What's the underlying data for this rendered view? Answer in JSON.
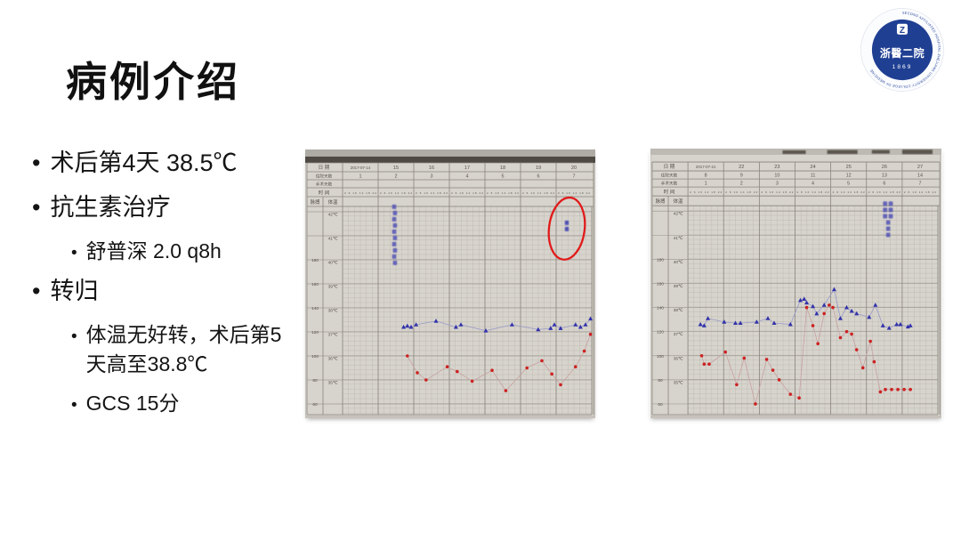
{
  "title": "病例介绍",
  "bullets": [
    {
      "level": 1,
      "text": "术后第4天 38.5℃"
    },
    {
      "level": 1,
      "text": "抗生素治疗"
    },
    {
      "level": 2,
      "text": "舒普深 2.0 q8h"
    },
    {
      "level": 1,
      "text": "转归"
    },
    {
      "level": 2,
      "text": "体温无好转，术后第5天高至38.8℃"
    },
    {
      "level": 2,
      "text": "GCS 15分"
    }
  ],
  "logo": {
    "ring_text": "SECOND AFFILIATED HOSPITAL ZHEJIANG UNIVERSITY COLLEGE OF MEDICINE",
    "monogram": "Z",
    "name_cn": "浙醫二院",
    "year": "1869",
    "blue": "#1f3f93"
  },
  "chart_data": [
    {
      "type": "line",
      "description": "住院体温单照片（入院第1周），蓝色三角=体温℃，红色圆点=脉搏次/分",
      "header_rows": {
        "date_label": "日 期",
        "dates": [
          "2017-07-14",
          "15",
          "16",
          "17",
          "18",
          "19",
          "20"
        ],
        "hospital_day_label": "住院天数",
        "hospital_days": [
          "1",
          "2",
          "3",
          "4",
          "5",
          "6",
          "7"
        ],
        "surgery_day_label": "手术天数",
        "surgery_days": [
          "",
          "",
          "",
          "",
          "",
          "",
          ""
        ],
        "time_label": "时 间",
        "time_ticks": "2 6 10 14 18 22"
      },
      "axes": {
        "pulse_label": "脉搏",
        "temp_label": "体温",
        "pulse_ticks": [
          "180",
          "160",
          "140",
          "120",
          "100",
          "80",
          "60",
          "40"
        ],
        "temp_ticks": [
          "42℃",
          "41℃",
          "40℃",
          "39℃",
          "38℃",
          "37℃",
          "36℃",
          "35℃"
        ],
        "temp_range": [
          35,
          42
        ],
        "pulse_range": [
          40,
          180
        ],
        "x_range_note": "x = fraction of 7-day grid, 6 four-hour slots per day"
      },
      "series": [
        {
          "name": "体温(℃)",
          "marker": "triangle",
          "color": "#3232aa",
          "points": [
            [
              0.245,
              37.2
            ],
            [
              0.26,
              37.25
            ],
            [
              0.275,
              37.2
            ],
            [
              0.295,
              37.3
            ],
            [
              0.375,
              37.45
            ],
            [
              0.455,
              37.2
            ],
            [
              0.475,
              37.3
            ],
            [
              0.575,
              37.05
            ],
            [
              0.68,
              37.3
            ],
            [
              0.785,
              37.1
            ],
            [
              0.835,
              37.15
            ],
            [
              0.85,
              37.3
            ],
            [
              0.875,
              37.15
            ],
            [
              0.935,
              37.3
            ],
            [
              0.955,
              37.2
            ],
            [
              0.975,
              37.3
            ],
            [
              0.995,
              37.55
            ]
          ]
        },
        {
          "name": "脉搏(次/分)",
          "marker": "dot",
          "color": "#cc2222",
          "points": [
            [
              0.26,
              100
            ],
            [
              0.3,
              86
            ],
            [
              0.335,
              80
            ],
            [
              0.42,
              91
            ],
            [
              0.46,
              87
            ],
            [
              0.52,
              79
            ],
            [
              0.6,
              88
            ],
            [
              0.655,
              71
            ],
            [
              0.74,
              90
            ],
            [
              0.8,
              96
            ],
            [
              0.84,
              85
            ],
            [
              0.875,
              76
            ],
            [
              0.935,
              91
            ],
            [
              0.97,
              104
            ],
            [
              0.995,
              118
            ]
          ]
        }
      ],
      "annotations": [
        {
          "type": "handwritten-note",
          "day_frac": 0.207,
          "y_temp": 42.3
        },
        {
          "type": "red-ellipse",
          "day_frac": 0.9,
          "y_temp": 41.3
        }
      ]
    },
    {
      "type": "line",
      "description": "住院体温单照片（术后第1周），蓝色三角=体温℃，红色圆点=脉搏次/分",
      "header_rows": {
        "date_label": "日 期",
        "dates": [
          "2017-07-21",
          "22",
          "23",
          "24",
          "25",
          "26",
          "27"
        ],
        "hospital_day_label": "住院天数",
        "hospital_days": [
          "8",
          "9",
          "10",
          "11",
          "12",
          "13",
          "14"
        ],
        "surgery_day_label": "手术天数",
        "surgery_days": [
          "1",
          "2",
          "3",
          "4",
          "5",
          "6",
          "7"
        ],
        "time_label": "时 间",
        "time_ticks": "2 6 10 14 18 22"
      },
      "axes": {
        "pulse_label": "脉搏",
        "temp_label": "体温",
        "pulse_ticks": [
          "180",
          "160",
          "140",
          "120",
          "100",
          "80",
          "60",
          "40"
        ],
        "temp_ticks": [
          "42℃",
          "41℃",
          "40℃",
          "39℃",
          "38℃",
          "37℃",
          "36℃",
          "35℃"
        ],
        "temp_range": [
          35,
          42
        ],
        "pulse_range": [
          40,
          180
        ],
        "x_range_note": "x = fraction of 7-day grid, 6 four-hour slots per day"
      },
      "series": [
        {
          "name": "体温(℃)",
          "marker": "triangle",
          "color": "#3232aa",
          "points": [
            [
              0.05,
              37.3
            ],
            [
              0.065,
              37.25
            ],
            [
              0.08,
              37.55
            ],
            [
              0.145,
              37.4
            ],
            [
              0.19,
              37.35
            ],
            [
              0.21,
              37.35
            ],
            [
              0.275,
              37.4
            ],
            [
              0.32,
              37.55
            ],
            [
              0.345,
              37.35
            ],
            [
              0.41,
              37.3
            ],
            [
              0.45,
              38.3
            ],
            [
              0.465,
              38.35
            ],
            [
              0.475,
              38.2
            ],
            [
              0.5,
              38.05
            ],
            [
              0.515,
              37.75
            ],
            [
              0.545,
              38.1
            ],
            [
              0.585,
              38.75
            ],
            [
              0.61,
              37.55
            ],
            [
              0.635,
              38.0
            ],
            [
              0.655,
              37.85
            ],
            [
              0.675,
              37.75
            ],
            [
              0.725,
              37.6
            ],
            [
              0.75,
              38.1
            ],
            [
              0.78,
              37.25
            ],
            [
              0.805,
              37.15
            ],
            [
              0.835,
              37.3
            ],
            [
              0.85,
              37.3
            ],
            [
              0.88,
              37.2
            ],
            [
              0.89,
              37.25
            ]
          ]
        },
        {
          "name": "脉搏(次/分)",
          "marker": "dot",
          "color": "#cc2222",
          "points": [
            [
              0.055,
              100
            ],
            [
              0.065,
              93
            ],
            [
              0.085,
              93
            ],
            [
              0.15,
              103
            ],
            [
              0.195,
              76
            ],
            [
              0.225,
              98
            ],
            [
              0.27,
              60
            ],
            [
              0.315,
              97
            ],
            [
              0.34,
              88
            ],
            [
              0.365,
              80
            ],
            [
              0.41,
              68
            ],
            [
              0.445,
              65
            ],
            [
              0.475,
              140
            ],
            [
              0.5,
              125
            ],
            [
              0.52,
              110
            ],
            [
              0.545,
              135
            ],
            [
              0.565,
              142
            ],
            [
              0.58,
              140
            ],
            [
              0.61,
              115
            ],
            [
              0.635,
              120
            ],
            [
              0.655,
              118
            ],
            [
              0.675,
              105
            ],
            [
              0.7,
              90
            ],
            [
              0.73,
              112
            ],
            [
              0.745,
              95
            ],
            [
              0.77,
              70
            ],
            [
              0.79,
              72
            ],
            [
              0.815,
              72
            ],
            [
              0.84,
              72
            ],
            [
              0.865,
              72
            ],
            [
              0.89,
              72
            ]
          ]
        }
      ],
      "annotations": [
        {
          "type": "handwritten-note",
          "day_frac": 0.8,
          "y_temp": 42.4
        }
      ]
    }
  ]
}
